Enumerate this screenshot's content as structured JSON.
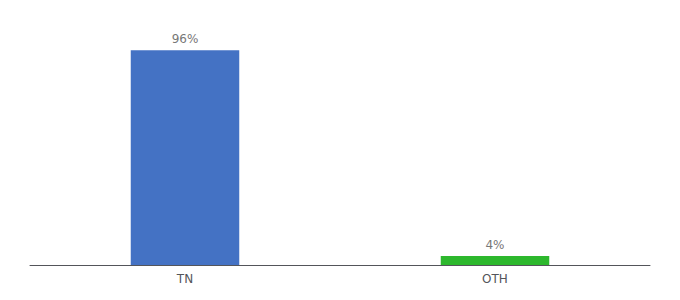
{
  "chart_data": {
    "type": "bar",
    "categories": [
      "TN",
      "OTH"
    ],
    "values": [
      96,
      4
    ],
    "value_labels": [
      "96%",
      "4%"
    ],
    "colors": [
      "#4472c4",
      "#2db82d"
    ],
    "ylim": [
      0,
      105
    ],
    "grid": false,
    "tick_labels": "x"
  }
}
